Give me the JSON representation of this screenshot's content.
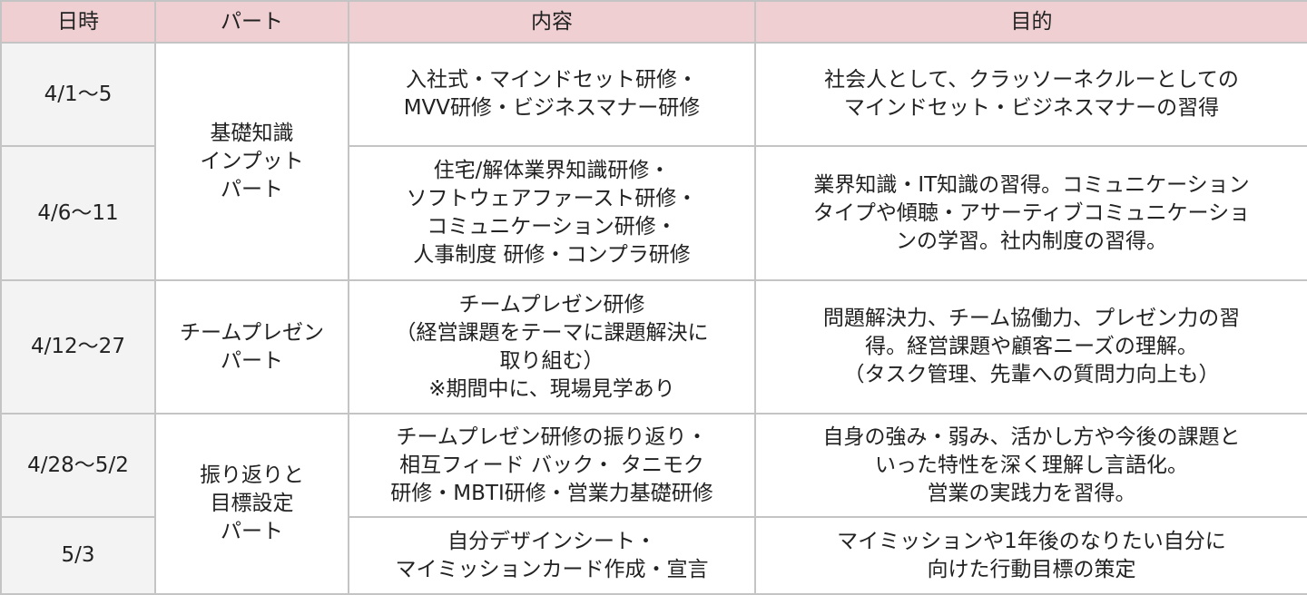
{
  "headers": [
    "日時",
    "パート",
    "内容",
    "目的"
  ],
  "rows": [
    {
      "date": "4/1〜5",
      "content": "入社式・マインドセット研修・\nMVV研修・ビジネスマナー研修\n",
      "purpose": "社会人として、クラッソーネクルーとしての\nマインドセット・ビジネスマナーの習得\n"
    },
    {
      "date": "4/6〜11",
      "content": "住宅/解体業界知識研修・\nソフトウェアファースト研修・\nコミュニケーション研修・\n人事制度 研修・コンプラ研修",
      "purpose": "業界知識・IT知識の習得。コミュニケーション\nタイプや傾聴・アサーティブコミュニケーショ\nンの学習。社内制度の習得。\n"
    },
    {
      "date": "4/12〜27",
      "content": "チームプレゼン研修\n（経営課題をテーマに課題解決に\n取り組む）\n※期間中に、現場見学あり",
      "purpose": "問題解決力、チーム協働力、プレゼン力の習\n得。経営課題や顧客ニーズの理解。\n（タスク管理、先輩への質問力向上も）\n"
    },
    {
      "date": "4/28〜5/2",
      "content": "チームプレゼン研修の振り返り・\n相互フィード バック・ タニモク\n研修・MBTI研修・営業力基礎研修",
      "purpose": "自身の強み・弱み、活かし方や今後の課題と\nいった特性を深く理解し言語化。\n営業の実践力を習得。"
    },
    {
      "date": "5/3",
      "content": "自分デザインシート・\nマイミッションカード作成・宣言",
      "purpose": "マイミッションや1年後のなりたい自分に\n向けた行動目標の策定"
    }
  ],
  "parts": [
    "基礎知識\nインプット\nパート",
    "チームプレゼン\nパート",
    "振り返りと\n目標設定\nパート"
  ],
  "colors": {
    "header_bg": "#efcfd1",
    "date_bg": "#f3f3f3",
    "border": "#c4c4c4"
  }
}
